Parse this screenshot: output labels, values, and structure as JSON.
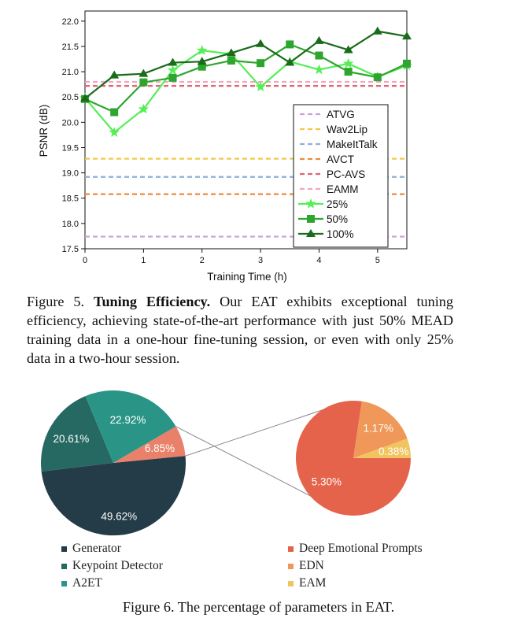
{
  "figure5": {
    "caption_label": "Figure 5.",
    "caption_bold": "Tuning Efficiency.",
    "caption_text": "Our EAT exhibits exceptional tuning efficiency, achieving state-of-the-art performance with just 50% MEAD training data in a one-hour fine-tuning session, or even with only 25% data in a two-hour session."
  },
  "figure6": {
    "caption": "Figure 6. The percentage of parameters in EAT."
  },
  "chart_data": [
    {
      "type": "line",
      "title": "",
      "xlabel": "Training Time (h)",
      "ylabel": "PSNR (dB)",
      "xlim": [
        0,
        5.5
      ],
      "ylim": [
        17.5,
        22.2
      ],
      "xticks": [
        "0",
        "1",
        "2",
        "3",
        "4",
        "5"
      ],
      "yticks": [
        "17.5",
        "18.0",
        "18.5",
        "19.0",
        "19.5",
        "20.0",
        "20.5",
        "21.0",
        "21.5",
        "22.0"
      ],
      "legend_position": "right",
      "baselines": [
        {
          "name": "ATVG",
          "y": 17.74,
          "color": "#c9a0dc"
        },
        {
          "name": "Wav2Lip",
          "y": 19.28,
          "color": "#f2c84b"
        },
        {
          "name": "MakeItTalk",
          "y": 18.92,
          "color": "#8fb1d6"
        },
        {
          "name": "AVCT",
          "y": 18.58,
          "color": "#ef8a3a"
        },
        {
          "name": "PC-AVS",
          "y": 20.72,
          "color": "#e36470"
        },
        {
          "name": "EAMM",
          "y": 20.8,
          "color": "#f2a5c0"
        }
      ],
      "series": [
        {
          "name": "25%",
          "marker": "star",
          "color": "#55ee55",
          "x": [
            0,
            0.5,
            1,
            1.5,
            2,
            2.5,
            3,
            3.5,
            4,
            4.5,
            5,
            5.5
          ],
          "values": [
            20.48,
            19.8,
            20.26,
            21.03,
            21.42,
            21.35,
            20.7,
            21.2,
            21.04,
            21.16,
            20.9,
            21.12
          ]
        },
        {
          "name": "50%",
          "marker": "square",
          "color": "#2ea52e",
          "x": [
            0,
            0.5,
            1,
            1.5,
            2,
            2.5,
            3,
            3.5,
            4,
            4.5,
            5,
            5.5
          ],
          "values": [
            20.46,
            20.2,
            20.79,
            20.88,
            21.1,
            21.22,
            21.17,
            21.54,
            21.32,
            21.0,
            20.89,
            21.16
          ]
        },
        {
          "name": "100%",
          "marker": "triangle",
          "color": "#1a6b1a",
          "x": [
            0,
            0.5,
            1,
            1.5,
            2,
            2.5,
            3,
            3.5,
            4,
            4.5,
            5,
            5.5
          ],
          "values": [
            20.47,
            20.93,
            20.96,
            21.18,
            21.2,
            21.37,
            21.55,
            21.18,
            21.61,
            21.43,
            21.8,
            21.7
          ]
        }
      ]
    },
    {
      "type": "pie",
      "name": "parameters",
      "slices": [
        {
          "label": "Generator",
          "value": 49.62,
          "display": "49.62%",
          "color": "#243b48"
        },
        {
          "label": "Keypoint Detector",
          "value": 20.61,
          "display": "20.61%",
          "color": "#266962"
        },
        {
          "label": "A2ET",
          "value": 22.92,
          "display": "22.92%",
          "color": "#2a9587"
        },
        {
          "label": "",
          "value": 6.85,
          "display": "6.85%",
          "color": "#e9806a"
        }
      ]
    },
    {
      "type": "pie",
      "name": "breakdown",
      "slices": [
        {
          "label": "Deep Emotional Prompts",
          "value": 5.3,
          "display": "5.30%",
          "color": "#e5634b"
        },
        {
          "label": "EDN",
          "value": 1.17,
          "display": "1.17%",
          "color": "#ef985a"
        },
        {
          "label": "EAM",
          "value": 0.38,
          "display": "0.38%",
          "color": "#f0c55f"
        }
      ]
    }
  ]
}
